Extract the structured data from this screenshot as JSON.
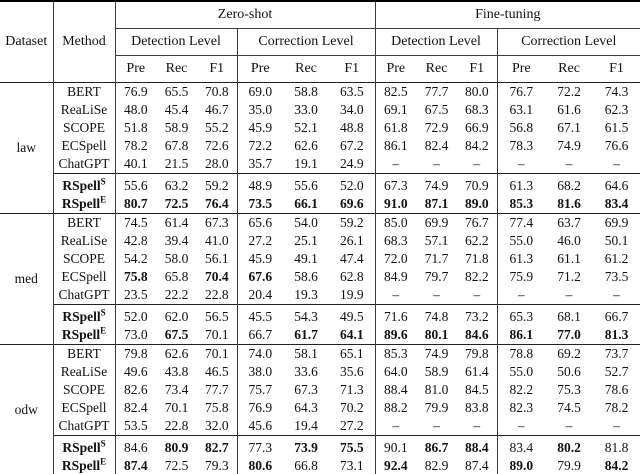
{
  "colors": {
    "background": "#ffffff",
    "text": "#111111",
    "rule": "#3a3a3a"
  },
  "table": {
    "header": {
      "dataset": "Dataset",
      "method": "Method",
      "groups": [
        "Zero-shot",
        "Fine-tuning"
      ],
      "levels": [
        "Detection Level",
        "Correction Level",
        "Detection Level",
        "Correction Level"
      ],
      "metrics": [
        "Pre",
        "Rec",
        "F1"
      ]
    },
    "dash": "–",
    "groups": [
      {
        "dataset": "law",
        "rows": [
          {
            "method": "BERT",
            "sup": "",
            "strong": false,
            "section": "base",
            "values": [
              "76.9",
              "65.5",
              "70.8",
              "69.0",
              "58.8",
              "63.5",
              "82.5",
              "77.7",
              "80.0",
              "76.7",
              "72.2",
              "74.3"
            ],
            "bold_idx": []
          },
          {
            "method": "ReaLiSe",
            "sup": "",
            "strong": false,
            "section": "base",
            "values": [
              "48.0",
              "45.4",
              "46.7",
              "35.0",
              "33.0",
              "34.0",
              "69.1",
              "67.5",
              "68.3",
              "63.1",
              "61.6",
              "62.3"
            ],
            "bold_idx": []
          },
          {
            "method": "SCOPE",
            "sup": "",
            "strong": false,
            "section": "base",
            "values": [
              "51.8",
              "58.9",
              "55.2",
              "45.9",
              "52.1",
              "48.8",
              "61.8",
              "72.9",
              "66.9",
              "56.8",
              "67.1",
              "61.5"
            ],
            "bold_idx": []
          },
          {
            "method": "ECSpell",
            "sup": "",
            "strong": false,
            "section": "base",
            "values": [
              "78.2",
              "67.8",
              "72.6",
              "72.2",
              "62.6",
              "67.2",
              "86.1",
              "82.4",
              "84.2",
              "78.3",
              "74.9",
              "76.6"
            ],
            "bold_idx": []
          },
          {
            "method": "ChatGPT",
            "sup": "",
            "strong": false,
            "section": "base",
            "values": [
              "40.1",
              "21.5",
              "28.0",
              "35.7",
              "19.1",
              "24.9",
              "–",
              "–",
              "–",
              "–",
              "–",
              "–"
            ],
            "bold_idx": []
          },
          {
            "method": "RSpell",
            "sup": "S",
            "strong": true,
            "section": "rspell",
            "values": [
              "55.6",
              "63.2",
              "59.2",
              "48.9",
              "55.6",
              "52.0",
              "67.3",
              "74.9",
              "70.9",
              "61.3",
              "68.2",
              "64.6"
            ],
            "bold_idx": []
          },
          {
            "method": "RSpell",
            "sup": "E",
            "strong": true,
            "section": "rspell",
            "values": [
              "80.7",
              "72.5",
              "76.4",
              "73.5",
              "66.1",
              "69.6",
              "91.0",
              "87.1",
              "89.0",
              "85.3",
              "81.6",
              "83.4"
            ],
            "bold_idx": [
              0,
              1,
              2,
              3,
              4,
              5,
              6,
              7,
              8,
              9,
              10,
              11
            ]
          }
        ]
      },
      {
        "dataset": "med",
        "rows": [
          {
            "method": "BERT",
            "sup": "",
            "strong": false,
            "section": "base",
            "values": [
              "74.5",
              "61.4",
              "67.3",
              "65.6",
              "54.0",
              "59.2",
              "85.0",
              "69.9",
              "76.7",
              "77.4",
              "63.7",
              "69.9"
            ],
            "bold_idx": []
          },
          {
            "method": "ReaLiSe",
            "sup": "",
            "strong": false,
            "section": "base",
            "values": [
              "42.8",
              "39.4",
              "41.0",
              "27.2",
              "25.1",
              "26.1",
              "68.3",
              "57.1",
              "62.2",
              "55.0",
              "46.0",
              "50.1"
            ],
            "bold_idx": []
          },
          {
            "method": "SCOPE",
            "sup": "",
            "strong": false,
            "section": "base",
            "values": [
              "54.2",
              "58.0",
              "56.1",
              "45.9",
              "49.1",
              "47.4",
              "72.0",
              "71.7",
              "71.8",
              "61.3",
              "61.1",
              "61.2"
            ],
            "bold_idx": []
          },
          {
            "method": "ECSpell",
            "sup": "",
            "strong": false,
            "section": "base",
            "values": [
              "75.8",
              "65.8",
              "70.4",
              "67.6",
              "58.6",
              "62.8",
              "84.9",
              "79.7",
              "82.2",
              "75.9",
              "71.2",
              "73.5"
            ],
            "bold_idx": [
              0,
              2,
              3
            ]
          },
          {
            "method": "ChatGPT",
            "sup": "",
            "strong": false,
            "section": "base",
            "values": [
              "23.5",
              "22.2",
              "22.8",
              "20.4",
              "19.3",
              "19.9",
              "–",
              "–",
              "–",
              "–",
              "–",
              "–"
            ],
            "bold_idx": []
          },
          {
            "method": "RSpell",
            "sup": "S",
            "strong": true,
            "section": "rspell",
            "values": [
              "52.0",
              "62.0",
              "56.5",
              "45.5",
              "54.3",
              "49.5",
              "71.6",
              "74.8",
              "73.2",
              "65.3",
              "68.1",
              "66.7"
            ],
            "bold_idx": []
          },
          {
            "method": "RSpell",
            "sup": "E",
            "strong": true,
            "section": "rspell",
            "values": [
              "73.0",
              "67.5",
              "70.1",
              "66.7",
              "61.7",
              "64.1",
              "89.6",
              "80.1",
              "84.6",
              "86.1",
              "77.0",
              "81.3"
            ],
            "bold_idx": [
              1,
              4,
              5,
              6,
              7,
              8,
              9,
              10,
              11
            ]
          }
        ]
      },
      {
        "dataset": "odw",
        "rows": [
          {
            "method": "BERT",
            "sup": "",
            "strong": false,
            "section": "base",
            "values": [
              "79.8",
              "62.6",
              "70.1",
              "74.0",
              "58.1",
              "65.1",
              "85.3",
              "74.9",
              "79.8",
              "78.8",
              "69.2",
              "73.7"
            ],
            "bold_idx": []
          },
          {
            "method": "ReaLiSe",
            "sup": "",
            "strong": false,
            "section": "base",
            "values": [
              "49.6",
              "43.8",
              "46.5",
              "38.0",
              "33.6",
              "35.6",
              "64.0",
              "58.9",
              "61.4",
              "55.0",
              "50.6",
              "52.7"
            ],
            "bold_idx": []
          },
          {
            "method": "SCOPE",
            "sup": "",
            "strong": false,
            "section": "base",
            "values": [
              "82.6",
              "73.4",
              "77.7",
              "75.7",
              "67.3",
              "71.3",
              "88.4",
              "81.0",
              "84.5",
              "82.2",
              "75.3",
              "78.6"
            ],
            "bold_idx": []
          },
          {
            "method": "ECSpell",
            "sup": "",
            "strong": false,
            "section": "base",
            "values": [
              "82.4",
              "70.1",
              "75.8",
              "76.9",
              "64.3",
              "70.2",
              "88.2",
              "79.9",
              "83.8",
              "82.3",
              "74.5",
              "78.2"
            ],
            "bold_idx": []
          },
          {
            "method": "ChatGPT",
            "sup": "",
            "strong": false,
            "section": "base",
            "values": [
              "53.5",
              "22.8",
              "32.0",
              "45.6",
              "19.4",
              "27.2",
              "–",
              "–",
              "–",
              "–",
              "–",
              "–"
            ],
            "bold_idx": []
          },
          {
            "method": "RSpell",
            "sup": "S",
            "strong": true,
            "section": "rspell",
            "values": [
              "84.6",
              "80.9",
              "82.7",
              "77.3",
              "73.9",
              "75.5",
              "90.1",
              "86.7",
              "88.4",
              "83.4",
              "80.2",
              "81.8"
            ],
            "bold_idx": [
              1,
              2,
              4,
              5,
              7,
              8,
              10
            ]
          },
          {
            "method": "RSpell",
            "sup": "E",
            "strong": true,
            "section": "rspell",
            "values": [
              "87.4",
              "72.5",
              "79.3",
              "80.6",
              "66.8",
              "73.1",
              "92.4",
              "82.9",
              "87.4",
              "89.0",
              "79.9",
              "84.2"
            ],
            "bold_idx": [
              0,
              3,
              6,
              9,
              11
            ]
          }
        ]
      }
    ]
  }
}
